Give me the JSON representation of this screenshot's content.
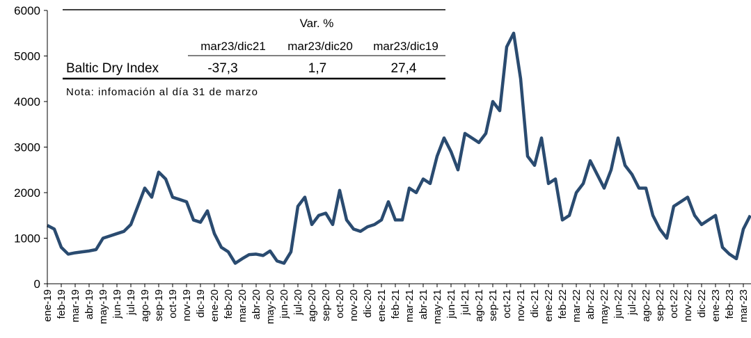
{
  "chart_data": {
    "type": "line",
    "categories": [
      "ene-19",
      null,
      "feb-19",
      null,
      "mar-19",
      null,
      "abr-19",
      null,
      "may-19",
      null,
      "jun-19",
      null,
      "jul-19",
      null,
      "ago-19",
      null,
      "sep-19",
      null,
      "oct-19",
      null,
      "nov-19",
      null,
      "dic-19",
      null,
      "ene-20",
      null,
      "feb-20",
      null,
      "mar-20",
      null,
      "abr-20",
      null,
      "may-20",
      null,
      "jun-20",
      null,
      "jul-20",
      null,
      "ago-20",
      null,
      "sep-20",
      null,
      "oct-20",
      null,
      "nov-20",
      null,
      "dic-20",
      null,
      "ene-21",
      null,
      "feb-21",
      null,
      "mar-21",
      null,
      "abr-21",
      null,
      "may-21",
      null,
      "jun-21",
      null,
      "jul-21",
      null,
      "ago-21",
      null,
      "sep-21",
      null,
      "oct-21",
      null,
      "nov-21",
      null,
      "dic-21",
      null,
      "ene-22",
      null,
      "feb-22",
      null,
      "mar-22",
      null,
      "abr-22",
      null,
      "may-22",
      null,
      "jun-22",
      null,
      "jul-22",
      null,
      "ago-22",
      null,
      "sep-22",
      null,
      "oct-22",
      null,
      "nov-22",
      null,
      "dic-22",
      null,
      "ene-23",
      null,
      "feb-23",
      null,
      "mar-23",
      null
    ],
    "series": [
      {
        "name": "Baltic Dry Index",
        "color": "#2a4b70",
        "values": [
          1280,
          1200,
          800,
          650,
          680,
          700,
          720,
          750,
          1000,
          1050,
          1100,
          1150,
          1300,
          1700,
          2100,
          1900,
          2450,
          2300,
          1900,
          1850,
          1800,
          1400,
          1350,
          1600,
          1100,
          800,
          700,
          450,
          550,
          640,
          650,
          620,
          720,
          500,
          450,
          700,
          1700,
          1900,
          1300,
          1500,
          1550,
          1300,
          2050,
          1400,
          1200,
          1150,
          1250,
          1300,
          1400,
          1800,
          1400,
          1400,
          2100,
          2000,
          2300,
          2200,
          2800,
          3200,
          2900,
          2500,
          3300,
          3200,
          3100,
          3300,
          4000,
          3800,
          5200,
          5500,
          4500,
          2800,
          2600,
          3200,
          2200,
          2300,
          1400,
          1500,
          2000,
          2200,
          2700,
          2400,
          2100,
          2500,
          3200,
          2600,
          2400,
          2100,
          2100,
          1500,
          1200,
          1000,
          1700,
          1800,
          1900,
          1500,
          1300,
          1400,
          1500,
          800,
          650,
          550,
          1200,
          1500
        ]
      }
    ],
    "ylim": [
      0,
      6000
    ],
    "yticks": [
      0,
      1000,
      2000,
      3000,
      4000,
      5000,
      6000
    ],
    "grid": false
  },
  "table": {
    "title": "Var. %",
    "columns": [
      "mar23/dic21",
      "mar23/dic20",
      "mar23/dic19"
    ],
    "rows": [
      [
        "Baltic Dry Index",
        "-37,3",
        "1,7",
        "27,4"
      ]
    ],
    "note": "Nota: infomación al día 31 de marzo"
  }
}
